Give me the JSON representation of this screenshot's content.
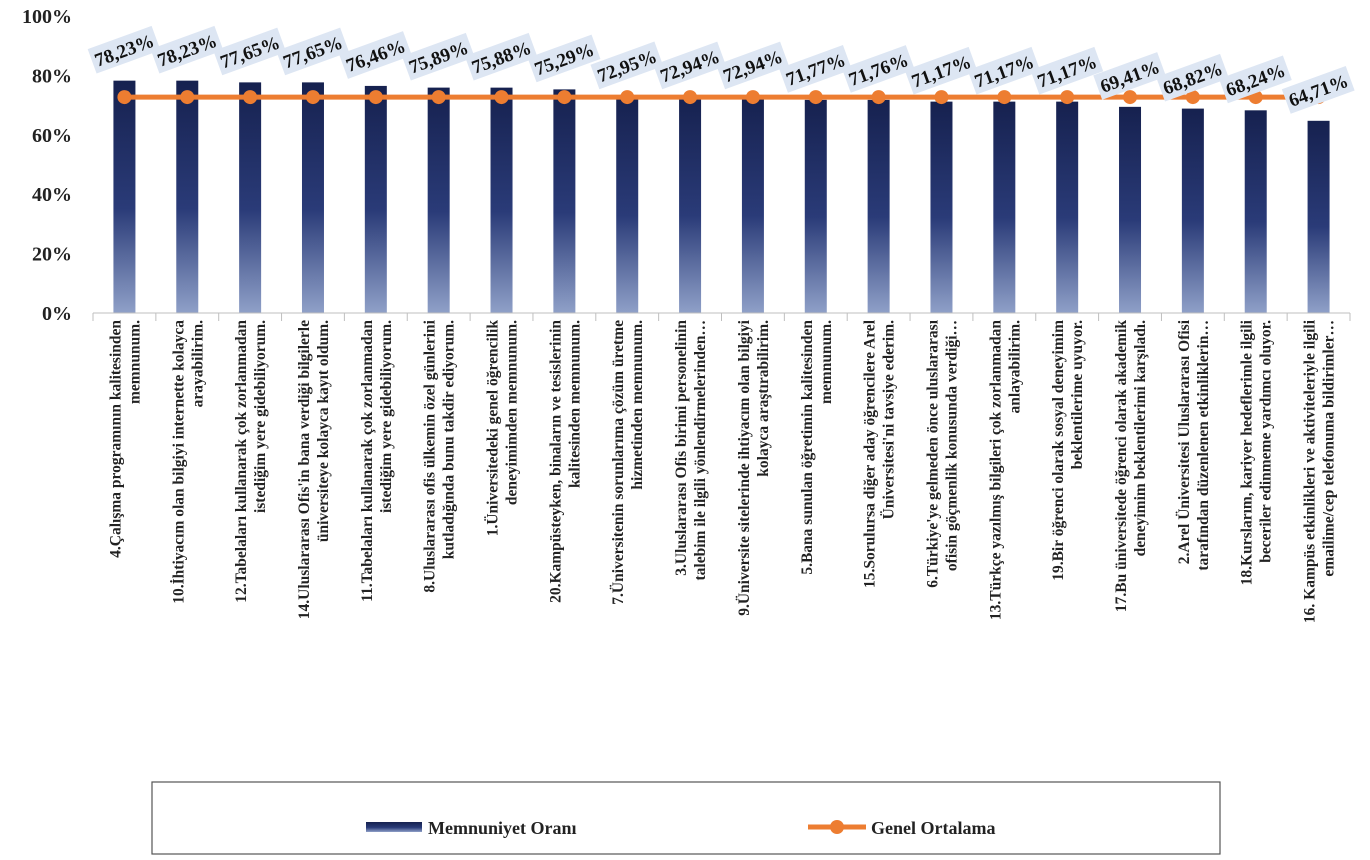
{
  "chart_data": {
    "type": "bar",
    "categories": [
      [
        "4.Çalışma programının kalitesinden",
        "memnunum."
      ],
      [
        "10.İhtiyacım olan bilgiyi internette kolayca",
        "arayabilirim."
      ],
      [
        "12.Tabelaları kullanarak çok zorlanmadan",
        "istediğim yere gidebiliyorum."
      ],
      [
        "14.Uluslararası Ofis'in bana verdiği bilgilerle",
        "üniversiteye kolayca kayıt oldum."
      ],
      [
        "11.Tabelaları kullanarak çok zorlanmadan",
        "istediğim yere gidebiliyorum."
      ],
      [
        "8.Uluslararası ofis ülkemin özel günlerini",
        "kutladığında bunu takdir ediyorum."
      ],
      [
        "1.Üniversitedeki genel öğrencilik",
        "deneyimimden memnunum."
      ],
      [
        "20.Kampüsteyken, binaların ve tesislerinin",
        "kalitesinden memnunum."
      ],
      [
        "7.Üniversitenin sorunlarıma çözüm üretme",
        "hizmetinden memnunum."
      ],
      [
        "3.Uluslararası Ofis birimi personelinin",
        "talebim ile ilgili yönlendirmelerinden…"
      ],
      [
        "9.Üniversite sitelerinde ihtiyacım olan bilgiyi",
        "kolayca araştırabilirim."
      ],
      [
        "5.Bana sunulan öğretimin kalitesinden",
        "memnunum."
      ],
      [
        "15.Sorulursa diğer aday öğrencilere Arel",
        "Üniversitesi'ni tavsiye ederim."
      ],
      [
        "6.Türkiye'ye gelmeden önce uluslararası",
        "ofisin göçmenlik konusunda verdiği…"
      ],
      [
        "13.Türkçe yazılmış bilgileri çok zorlanmadan",
        "anlayabilirim."
      ],
      [
        "19.Bir öğrenci olarak sosyal deneyimim",
        "beklentilerime uyuyor."
      ],
      [
        "17.Bu üniversitede öğrenci olarak akademik",
        "deneyimim beklentilerimi karşıladı."
      ],
      [
        "2.Arel Üniversitesi Uluslararası Ofisi",
        "tarafından düzenlenen etkinliklerin…"
      ],
      [
        "18.Kurslarım, kariyer hedeflerimle ilgili",
        "beceriler edinmeme yardımcı oluyor."
      ],
      [
        "16. Kampüs etkinlikleri ve aktiviteleriyle ilgili",
        "emailime/cep telefonuma bildirimler…"
      ]
    ],
    "series": [
      {
        "name": "Memnuniyet Oranı",
        "type": "bar",
        "color": "#1b2a5e",
        "values": [
          78.23,
          78.23,
          77.65,
          77.65,
          76.46,
          75.89,
          75.88,
          75.29,
          72.95,
          72.94,
          72.94,
          71.77,
          71.76,
          71.17,
          71.17,
          71.17,
          69.41,
          68.82,
          68.24,
          64.71
        ],
        "data_labels": [
          "78,23%",
          "78,23%",
          "77,65%",
          "77,65%",
          "76,46%",
          "75,89%",
          "75,88%",
          "75,29%",
          "72,95%",
          "72,94%",
          "72,94%",
          "71,77%",
          "71,76%",
          "71,17%",
          "71,17%",
          "71,17%",
          "69,41%",
          "68,82%",
          "68,24%",
          "64,71%"
        ]
      },
      {
        "name": "Genel Ortalama",
        "type": "line",
        "color": "#ed7d31",
        "values": [
          72.7,
          72.7,
          72.7,
          72.7,
          72.7,
          72.7,
          72.7,
          72.7,
          72.7,
          72.7,
          72.7,
          72.7,
          72.7,
          72.7,
          72.7,
          72.7,
          72.7,
          72.7,
          72.7,
          72.7
        ]
      }
    ],
    "y_ticks": [
      "0%",
      "20%",
      "40%",
      "60%",
      "80%",
      "100%"
    ],
    "ylim": [
      0,
      100
    ],
    "title": "",
    "xlabel": "",
    "ylabel": "",
    "grid": false,
    "legend": {
      "position": "bottom",
      "entries": [
        "Memnuniyet Oranı",
        "Genel Ortalama"
      ]
    },
    "label_bg": "#dde6f3"
  }
}
